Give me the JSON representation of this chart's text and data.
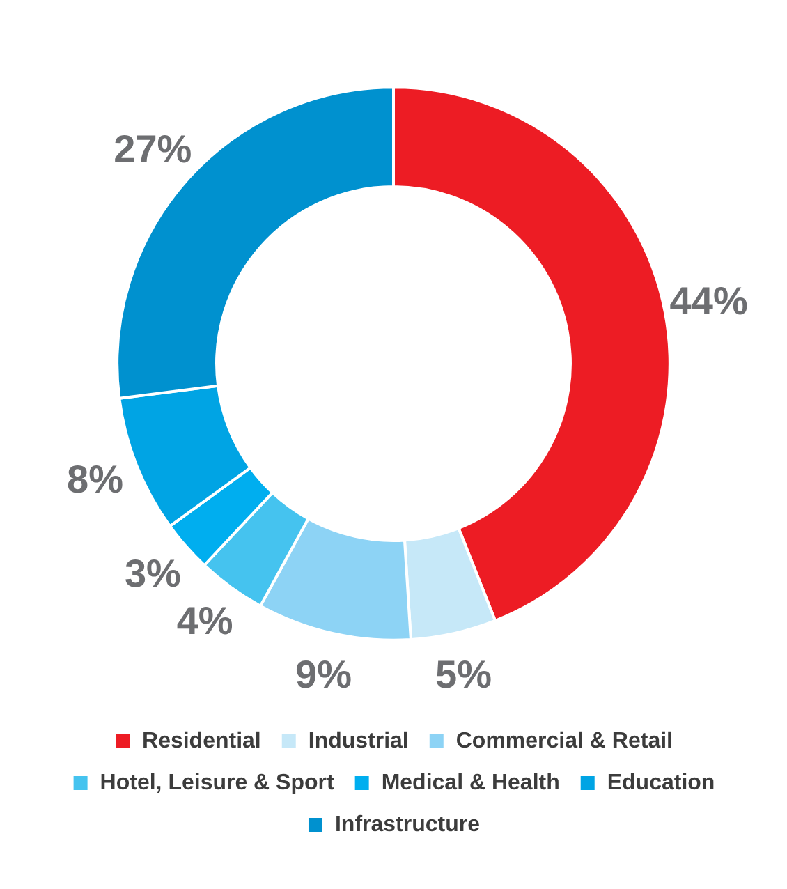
{
  "chart_data": {
    "type": "donut",
    "categories": [
      "Residential",
      "Industrial",
      "Commercial & Retail",
      "Hotel, Leisure & Sport",
      "Medical & Health",
      "Education",
      "Infrastructure"
    ],
    "values": [
      44,
      5,
      9,
      4,
      3,
      8,
      27
    ],
    "value_labels": [
      "44%",
      "5%",
      "9%",
      "4%",
      "3%",
      "8%",
      "27%"
    ],
    "colors": [
      "#ed1c24",
      "#c6e8f8",
      "#8dd3f5",
      "#45c3ef",
      "#00aeef",
      "#00a4e4",
      "#0091cf"
    ],
    "legend": "bottom"
  }
}
